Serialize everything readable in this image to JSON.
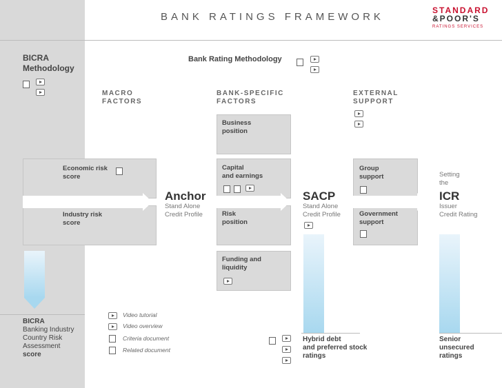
{
  "header": {
    "title": "BANK RATINGS FRAMEWORK"
  },
  "logo": {
    "line1": "STANDARD",
    "line2": "&POOR'S",
    "line3": "RATINGS SERVICES"
  },
  "bicra_methodology": {
    "line1": "BICRA",
    "line2": "Methodology"
  },
  "bank_rating_methodology": "Bank Rating Methodology",
  "sections": {
    "macro": {
      "line1": "MACRO",
      "line2": "FACTORS"
    },
    "bank": {
      "line1": "BANK-SPECIFIC",
      "line2": "FACTORS"
    },
    "external": {
      "line1": "EXTERNAL",
      "line2": "SUPPORT"
    }
  },
  "boxes": {
    "economic_risk": {
      "line1": "Economic risk",
      "line2": "score"
    },
    "industry_risk": {
      "line1": "Industry risk",
      "line2": "score"
    },
    "business_position": {
      "line1": "Business",
      "line2": "position"
    },
    "capital_earnings": {
      "line1": "Capital",
      "line2": "and earnings"
    },
    "risk_position": {
      "line1": "Risk",
      "line2": "position"
    },
    "funding_liquidity": {
      "line1": "Funding and",
      "line2": "liquidity"
    },
    "group_support": {
      "line1": "Group",
      "line2": "support"
    },
    "government_support": {
      "line1": "Government",
      "line2": "support"
    }
  },
  "anchor": {
    "title": "Anchor",
    "line1": "Stand Alone",
    "line2": "Credit Profile"
  },
  "sacp": {
    "title": "SACP",
    "line1": "Stand Alone",
    "line2": "Credit Profile"
  },
  "icr": {
    "setting1": "Setting",
    "setting2": "the",
    "title": "ICR",
    "line1": "Issuer",
    "line2": "Credit Rating"
  },
  "bicra_score": {
    "line1": "BICRA",
    "line2": "Banking Industry",
    "line3": "Country Risk",
    "line4": "Assessment",
    "line5": "score"
  },
  "legend": {
    "video_tutorial": "Video tutorial",
    "video_overview": "Video overview",
    "criteria_document": "Criteria document",
    "related_document": "Related document"
  },
  "hybrid": {
    "line1": "Hybrid debt",
    "line2": "and preferred stock",
    "line3": "ratings"
  },
  "senior": {
    "line1": "Senior",
    "line2": "unsecured",
    "line3": "ratings"
  },
  "colors": {
    "accent": "#c8102e",
    "panel": "#d9d9d9",
    "box": "#dadada",
    "pipe": "#a8d8ef"
  }
}
